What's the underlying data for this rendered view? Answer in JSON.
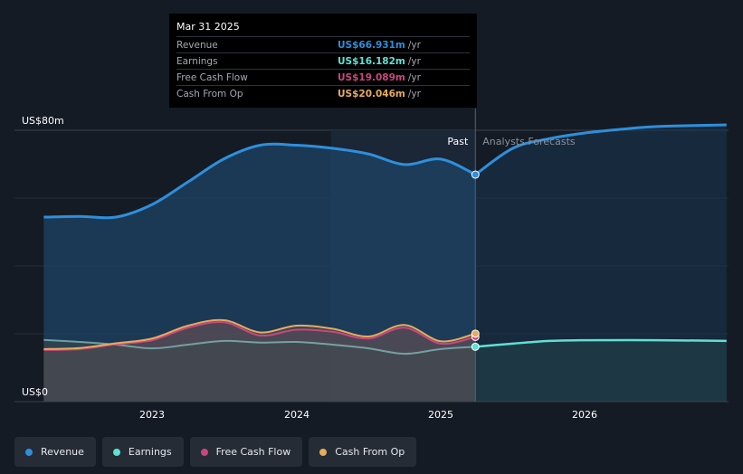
{
  "chart_data": {
    "type": "area",
    "title": "",
    "y_unit": "US$",
    "ylim": [
      0,
      80
    ],
    "y_ticks": [
      {
        "value": 80,
        "label": "US$80m"
      },
      {
        "value": 0,
        "label": "US$0"
      }
    ],
    "x_range": [
      2022.25,
      2026.98
    ],
    "x_ticks": [
      {
        "value": 2023,
        "label": "2023"
      },
      {
        "value": 2024,
        "label": "2024"
      },
      {
        "value": 2025,
        "label": "2025"
      },
      {
        "value": 2026,
        "label": "2026"
      }
    ],
    "present_x": 2025.24,
    "forecast_shade_start_x": 2024.24,
    "past_label": "Past",
    "forecast_label": "Analysts Forecasts",
    "series": [
      {
        "name": "Revenue",
        "color": "#2e8fdc",
        "points": [
          [
            2022.25,
            54.4
          ],
          [
            2022.5,
            54.6
          ],
          [
            2022.75,
            54.4
          ],
          [
            2023.0,
            58.1
          ],
          [
            2023.25,
            64.8
          ],
          [
            2023.5,
            71.6
          ],
          [
            2023.75,
            75.6
          ],
          [
            2024.0,
            75.6
          ],
          [
            2024.25,
            74.7
          ],
          [
            2024.5,
            73.0
          ],
          [
            2024.75,
            69.9
          ],
          [
            2025.0,
            71.5
          ],
          [
            2025.24,
            66.931
          ]
        ],
        "forecast": [
          [
            2025.24,
            66.931
          ],
          [
            2025.5,
            74.7
          ],
          [
            2025.75,
            77.5
          ],
          [
            2026.0,
            79.2
          ],
          [
            2026.25,
            80.3
          ],
          [
            2026.5,
            81.1
          ],
          [
            2026.98,
            81.6
          ]
        ]
      },
      {
        "name": "Earnings",
        "color": "#5ee1d3",
        "points": [
          [
            2022.25,
            18.2
          ],
          [
            2022.5,
            17.6
          ],
          [
            2022.75,
            16.8
          ],
          [
            2023.0,
            15.7
          ],
          [
            2023.25,
            16.8
          ],
          [
            2023.5,
            17.9
          ],
          [
            2023.75,
            17.4
          ],
          [
            2024.0,
            17.6
          ],
          [
            2024.25,
            16.8
          ],
          [
            2024.5,
            15.7
          ],
          [
            2024.75,
            14.1
          ],
          [
            2025.0,
            15.5
          ],
          [
            2025.24,
            16.182
          ]
        ],
        "forecast": [
          [
            2025.24,
            16.182
          ],
          [
            2025.5,
            17.1
          ],
          [
            2025.75,
            17.9
          ],
          [
            2026.0,
            18.1
          ],
          [
            2026.5,
            18.1
          ],
          [
            2026.98,
            17.9
          ]
        ]
      },
      {
        "name": "Free Cash Flow",
        "color": "#c9477f",
        "points": [
          [
            2022.25,
            15.2
          ],
          [
            2022.5,
            15.5
          ],
          [
            2022.75,
            16.9
          ],
          [
            2023.0,
            18.1
          ],
          [
            2023.25,
            21.8
          ],
          [
            2023.5,
            23.4
          ],
          [
            2023.75,
            19.5
          ],
          [
            2024.0,
            21.2
          ],
          [
            2024.25,
            20.6
          ],
          [
            2024.5,
            18.6
          ],
          [
            2024.75,
            21.8
          ],
          [
            2025.0,
            17.1
          ],
          [
            2025.24,
            19.089
          ]
        ]
      },
      {
        "name": "Cash From Op",
        "color": "#e7ac59",
        "points": [
          [
            2022.25,
            15.5
          ],
          [
            2022.5,
            15.8
          ],
          [
            2022.75,
            17.2
          ],
          [
            2023.0,
            18.6
          ],
          [
            2023.25,
            22.4
          ],
          [
            2023.5,
            24.0
          ],
          [
            2023.75,
            20.4
          ],
          [
            2024.0,
            22.4
          ],
          [
            2024.25,
            21.5
          ],
          [
            2024.5,
            19.2
          ],
          [
            2024.75,
            22.6
          ],
          [
            2025.0,
            17.8
          ],
          [
            2025.24,
            20.046
          ]
        ]
      }
    ]
  },
  "tooltip": {
    "date": "Mar 31 2025",
    "rows": [
      {
        "name": "Revenue",
        "value": "US$66.931m",
        "unit": "/yr",
        "color": "#2e8fdc"
      },
      {
        "name": "Earnings",
        "value": "US$16.182m",
        "unit": "/yr",
        "color": "#5ee1d3"
      },
      {
        "name": "Free Cash Flow",
        "value": "US$19.089m",
        "unit": "/yr",
        "color": "#c9477f"
      },
      {
        "name": "Cash From Op",
        "value": "US$20.046m",
        "unit": "/yr",
        "color": "#e7ac59"
      }
    ]
  },
  "legend": [
    {
      "label": "Revenue",
      "color": "#2e8fdc"
    },
    {
      "label": "Earnings",
      "color": "#5ee1d3"
    },
    {
      "label": "Free Cash Flow",
      "color": "#c9477f"
    },
    {
      "label": "Cash From Op",
      "color": "#e7ac59"
    }
  ]
}
